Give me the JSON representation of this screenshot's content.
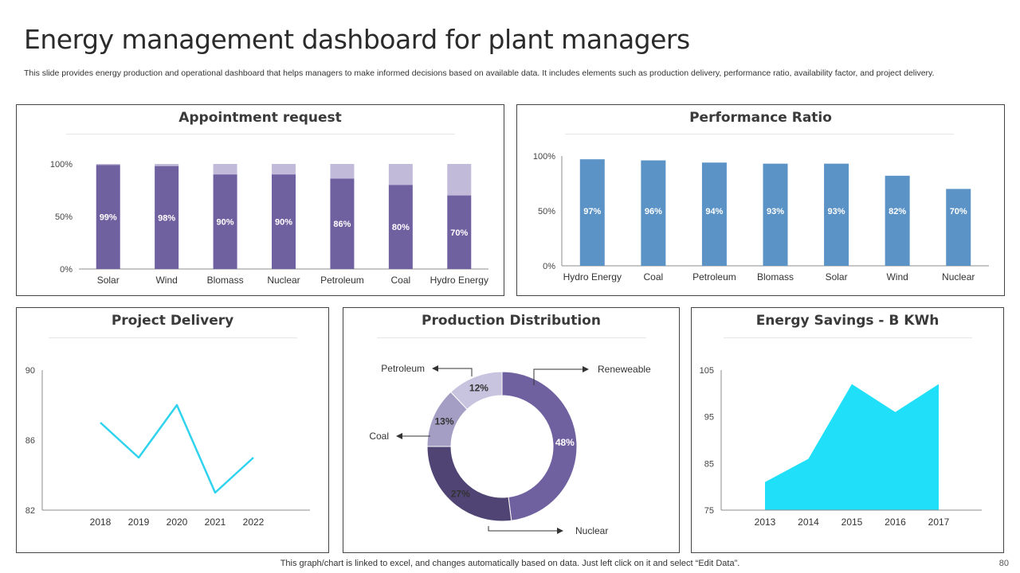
{
  "page": {
    "title": "Energy management dashboard for plant managers",
    "subtitle": "This slide provides energy production and operational dashboard that helps managers to make informed decisions based on available data. It includes elements such as production delivery, performance ratio, availability factor,  and project delivery.",
    "footnote": "This graph/chart is linked to excel,  and changes automatically based on data. Just left click on it and select “Edit Data”.",
    "page_number": "80"
  },
  "colors": {
    "purple": "#6f60a0",
    "purple_light": "#c1bbd9",
    "blue": "#5b93c7",
    "cyan": "#2fd3ee",
    "area": "#1fe0f8",
    "donut_dark": "#4f4474",
    "donut_mid": "#a49ec4",
    "donut_light": "#c8c3de"
  },
  "chart_data": [
    {
      "id": "appointment",
      "type": "bar",
      "stacked": true,
      "title": "Appointment request",
      "categories": [
        "Solar",
        "Wind",
        "Blomass",
        "Nuclear",
        "Petroleum",
        "Coal",
        "Hydro Energy"
      ],
      "values": [
        99,
        98,
        90,
        90,
        86,
        80,
        70
      ],
      "labels": [
        "99%",
        "98%",
        "90%",
        "90%",
        "86%",
        "80%",
        "70%"
      ],
      "remainder_to": 100,
      "yticks": [
        "0%",
        "50%",
        "100%"
      ],
      "ylim": [
        0,
        100
      ]
    },
    {
      "id": "performance",
      "type": "bar",
      "title": "Performance Ratio",
      "categories": [
        "Hydro Energy",
        "Coal",
        "Petroleum",
        "Blomass",
        "Solar",
        "Wind",
        "Nuclear"
      ],
      "values": [
        97,
        96,
        94,
        93,
        93,
        82,
        70
      ],
      "labels": [
        "97%",
        "96%",
        "94%",
        "93%",
        "93%",
        "82%",
        "70%"
      ],
      "yticks": [
        "0%",
        "50%",
        "100%"
      ],
      "ylim": [
        0,
        100
      ]
    },
    {
      "id": "project",
      "type": "line",
      "title": "Project Delivery",
      "x": [
        "2018",
        "2019",
        "2020",
        "2021",
        "2022"
      ],
      "values": [
        87,
        85,
        88,
        83,
        85
      ],
      "yticks": [
        "82",
        "86",
        "90"
      ],
      "ylim": [
        82,
        90
      ]
    },
    {
      "id": "production",
      "type": "pie",
      "donut": true,
      "title": "Production Distribution",
      "slices": [
        {
          "name": "Reneweable",
          "value": 48,
          "label": "48%"
        },
        {
          "name": "Nuclear",
          "value": 27,
          "label": "27%"
        },
        {
          "name": "Coal",
          "value": 13,
          "label": "13%"
        },
        {
          "name": "Petroleum",
          "value": 12,
          "label": "12%"
        }
      ]
    },
    {
      "id": "savings",
      "type": "area",
      "title": "Energy Savings - B KWh",
      "x": [
        "2013",
        "2014",
        "2015",
        "2016",
        "2017"
      ],
      "values": [
        81,
        86,
        102,
        96,
        102
      ],
      "yticks": [
        "75",
        "85",
        "95",
        "105"
      ],
      "ylim": [
        75,
        105
      ]
    }
  ]
}
